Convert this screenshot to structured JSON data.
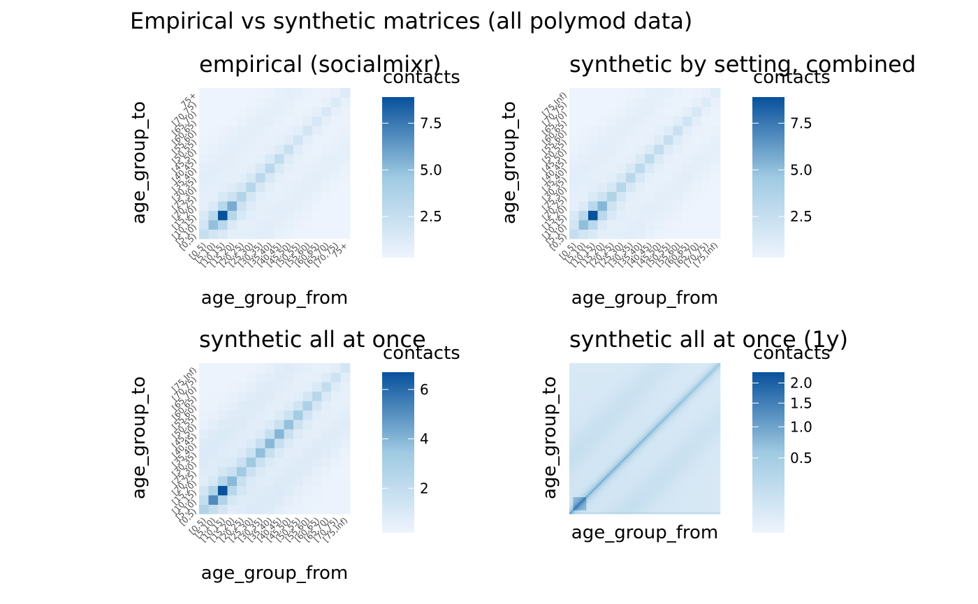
{
  "figure": {
    "title": "Empirical vs synthetic matrices (all polymod data)"
  },
  "colors": {
    "low": "#EEF4FD",
    "mid": "#9FCAE2",
    "high": "#08519C"
  },
  "chart_data": [
    {
      "type": "heatmap",
      "title": "empirical (socialmixr)",
      "xlabel": "age_group_from",
      "ylabel": "age_group_to",
      "legend_title": "contacts",
      "legend_ticks": [
        2.5,
        5.0,
        7.5
      ],
      "legend_tick_labels": [
        "2.5",
        "5.0",
        "7.5"
      ],
      "color_range": [
        0.3,
        8.9
      ],
      "categories": [
        "[0,5)",
        "[5,10)",
        "[10,15)",
        "[15,20)",
        "[20,25)",
        "[25,30)",
        "[30,35)",
        "[35,40)",
        "[40,45)",
        "[45,50)",
        "[50,55)",
        "[55,60)",
        "[60,65)",
        "[65,70)",
        "[70,75)",
        "75+"
      ],
      "diagonal_values": [
        1.9,
        4.4,
        8.8,
        5.2,
        3.1,
        2.9,
        2.6,
        2.8,
        2.4,
        2.0,
        1.6,
        1.5,
        1.3,
        1.2,
        1.1,
        1.0
      ]
    },
    {
      "type": "heatmap",
      "title": "synthetic by setting, combined",
      "xlabel": "age_group_from",
      "ylabel": "age_group_to",
      "legend_title": "contacts",
      "legend_ticks": [
        2.5,
        5.0,
        7.5
      ],
      "legend_tick_labels": [
        "2.5",
        "5.0",
        "7.5"
      ],
      "color_range": [
        0.3,
        8.9
      ],
      "categories": [
        "[0,5)",
        "[5,10)",
        "[10,15)",
        "[15,20)",
        "[20,25)",
        "[25,30)",
        "[30,35)",
        "[35,40)",
        "[40,45)",
        "[45,50)",
        "[50,55)",
        "[55,60)",
        "[60,65)",
        "[65,70)",
        "[70,75)",
        "[75,Inf)"
      ],
      "diagonal_values": [
        2.0,
        4.5,
        8.5,
        4.8,
        3.2,
        2.9,
        2.7,
        2.6,
        2.5,
        2.3,
        2.1,
        1.9,
        1.6,
        1.3,
        1.0,
        0.8
      ]
    },
    {
      "type": "heatmap",
      "title": "synthetic all at once",
      "xlabel": "age_group_from",
      "ylabel": "age_group_to",
      "legend_title": "contacts",
      "legend_ticks": [
        2,
        4,
        6
      ],
      "legend_tick_labels": [
        "2",
        "4",
        "6"
      ],
      "color_range": [
        0.2,
        6.7
      ],
      "categories": [
        "[0,5)",
        "[5,10)",
        "[10,15)",
        "[15,20)",
        "[20,25)",
        "[25,30)",
        "[30,35)",
        "[35,40)",
        "[40,45)",
        "[45,50)",
        "[50,55)",
        "[55,60)",
        "[60,65)",
        "[65,70)",
        "[70,75)",
        "[75,Inf)"
      ],
      "diagonal_values": [
        2.2,
        4.6,
        6.6,
        3.4,
        2.9,
        3.0,
        3.3,
        3.5,
        3.6,
        3.3,
        2.9,
        2.6,
        2.1,
        1.7,
        1.3,
        1.0
      ]
    },
    {
      "type": "heatmap",
      "title": "synthetic all at once (1y)",
      "xlabel": "age_group_from",
      "ylabel": "age_group_to",
      "legend_title": "contacts",
      "legend_ticks": [
        0.5,
        1.0,
        1.5,
        2.0
      ],
      "legend_tick_labels": [
        "0.5",
        "1.0",
        "1.5",
        "2.0"
      ],
      "color_range": [
        0.0,
        2.3
      ],
      "color_scale": "sqrt",
      "n_cells": 80
    }
  ]
}
